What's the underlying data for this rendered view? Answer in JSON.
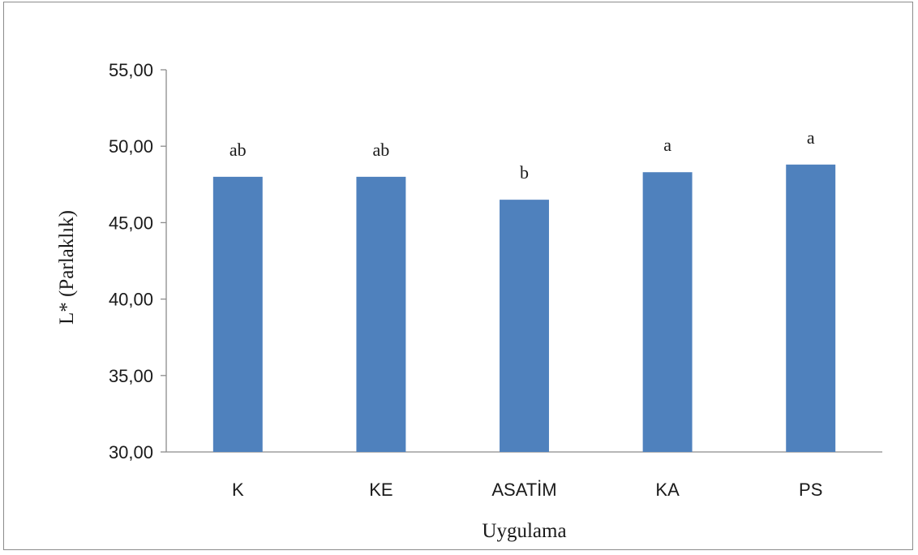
{
  "chart_data": {
    "type": "bar",
    "title": "",
    "xlabel": "Uygulama",
    "ylabel": "L* (Parlaklık)",
    "categories": [
      "K",
      "KE",
      "ASATİM",
      "KA",
      "PS"
    ],
    "values": [
      48.0,
      48.0,
      46.5,
      48.3,
      48.8
    ],
    "data_labels": [
      "ab",
      "ab",
      "b",
      "a",
      "a"
    ],
    "ylim": [
      30,
      55
    ],
    "yticks": [
      30,
      35,
      40,
      45,
      50,
      55
    ],
    "ytick_labels": [
      "30,00",
      "35,00",
      "40,00",
      "45,00",
      "50,00",
      "55,00"
    ],
    "bar_color": "#4f81bd",
    "grid": false,
    "legend": "none"
  }
}
